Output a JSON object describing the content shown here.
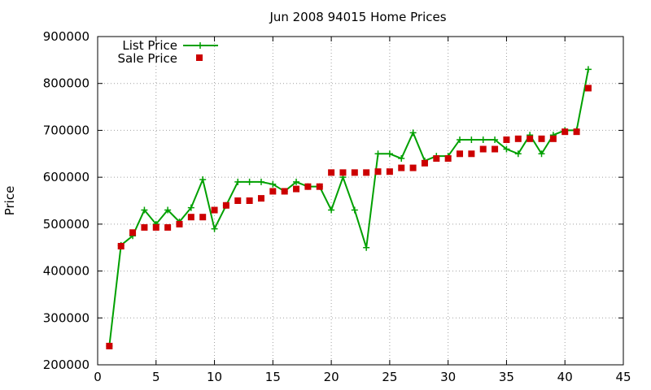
{
  "chart_data": {
    "type": "line",
    "title": "Jun 2008 94015 Home Prices",
    "xlabel": "",
    "ylabel": "Price",
    "xlim": [
      0,
      45
    ],
    "ylim": [
      200000,
      900000
    ],
    "xticks": [
      0,
      5,
      10,
      15,
      20,
      25,
      30,
      35,
      40,
      45
    ],
    "yticks": [
      200000,
      300000,
      400000,
      500000,
      600000,
      700000,
      800000,
      900000
    ],
    "grid": true,
    "legend_position": "top-left",
    "series": [
      {
        "name": "List Price",
        "style": "line-with-plus-markers",
        "color": "#00a000",
        "x": [
          1,
          2,
          3,
          4,
          5,
          6,
          7,
          8,
          9,
          10,
          11,
          12,
          13,
          14,
          15,
          16,
          17,
          18,
          19,
          20,
          21,
          22,
          23,
          24,
          25,
          26,
          27,
          28,
          29,
          30,
          31,
          32,
          33,
          34,
          35,
          36,
          37,
          38,
          39,
          40,
          41,
          42
        ],
        "values": [
          240000,
          455000,
          475000,
          530000,
          500000,
          530000,
          505000,
          535000,
          595000,
          490000,
          540000,
          590000,
          590000,
          590000,
          585000,
          570000,
          590000,
          580000,
          580000,
          530000,
          600000,
          530000,
          450000,
          650000,
          650000,
          640000,
          695000,
          635000,
          645000,
          645000,
          680000,
          680000,
          680000,
          680000,
          660000,
          650000,
          690000,
          650000,
          690000,
          700000,
          700000,
          830000
        ]
      },
      {
        "name": "Sale Price",
        "style": "square-markers",
        "color": "#cc0000",
        "x": [
          1,
          2,
          3,
          4,
          5,
          6,
          7,
          8,
          9,
          10,
          11,
          12,
          13,
          14,
          15,
          16,
          17,
          18,
          19,
          20,
          21,
          22,
          23,
          24,
          25,
          26,
          27,
          28,
          29,
          30,
          31,
          32,
          33,
          34,
          35,
          36,
          37,
          38,
          39,
          40,
          41,
          42
        ],
        "values": [
          240000,
          453000,
          482000,
          493000,
          493000,
          493000,
          500000,
          515000,
          515000,
          530000,
          540000,
          550000,
          550000,
          555000,
          570000,
          570000,
          575000,
          580000,
          580000,
          610000,
          610000,
          610000,
          610000,
          612000,
          612000,
          620000,
          620000,
          630000,
          640000,
          640000,
          650000,
          650000,
          660000,
          660000,
          680000,
          682000,
          682000,
          682000,
          682000,
          697000,
          697000,
          790000
        ]
      }
    ]
  }
}
